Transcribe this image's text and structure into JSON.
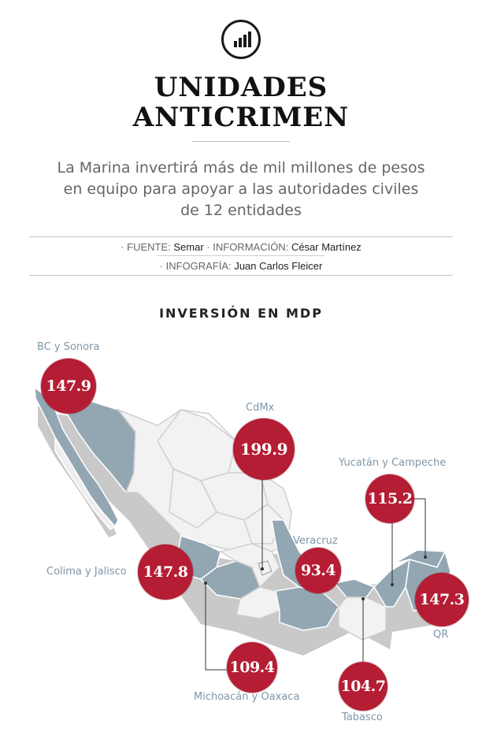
{
  "header": {
    "icon": "bar-chart-icon",
    "title_line1": "UNIDADES",
    "title_line2": "ANTICRIMEN",
    "subtitle_line1": "La Marina invertirá más de mil millones de pesos",
    "subtitle_line2": "en equipo para apoyar a las autoridades civiles",
    "subtitle_line3": "de 12 entidades"
  },
  "credits": {
    "source_label": "FUENTE:",
    "source": "Semar",
    "info_label": "INFORMACIÓN:",
    "info": "César Martínez",
    "graphic_label": "INFOGRAFÍA:",
    "graphic": "Juan Carlos Fleicer"
  },
  "section_title": "INVERSIÓN EN MDP",
  "regions": [
    {
      "name": "BC y Sonora",
      "value": "147.9"
    },
    {
      "name": "CdMx",
      "value": "199.9"
    },
    {
      "name": "Yucatán y Campeche",
      "value": "115.2"
    },
    {
      "name": "Veracruz",
      "value": "93.4"
    },
    {
      "name": "Colima y Jalisco",
      "value": "147.8"
    },
    {
      "name": "QR",
      "value": "147.3"
    },
    {
      "name": "Michoacán y Oaxaca",
      "value": "109.4"
    },
    {
      "name": "Tabasco",
      "value": "104.7"
    }
  ],
  "colors": {
    "bubble": "#b41d33",
    "highlight_state": "#93a7b3",
    "base_state": "#f0f0f0",
    "label": "#7f96a8"
  }
}
